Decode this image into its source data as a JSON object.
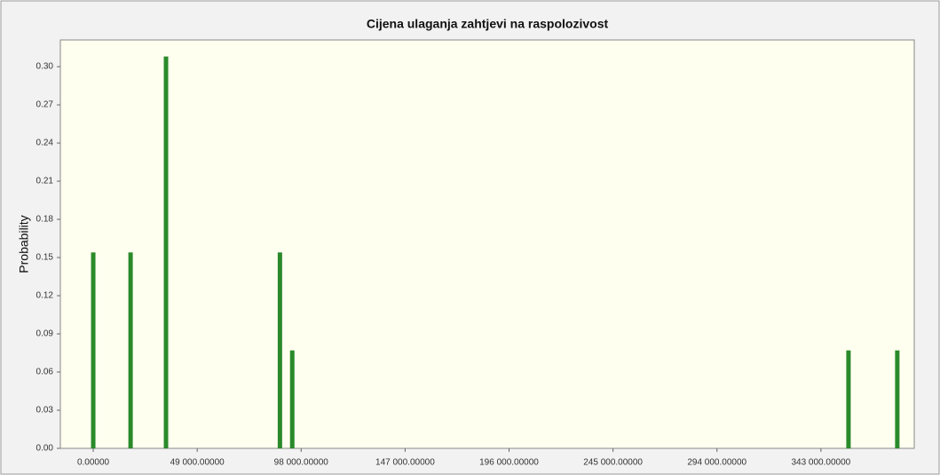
{
  "chart_data": {
    "type": "bar",
    "title": "Cijena ulaganja zahtjevi na raspolozivost",
    "y_label": "Probability",
    "x": [
      0,
      17600,
      34300,
      88000,
      93800,
      356000,
      379000
    ],
    "values": [
      0.154,
      0.154,
      0.308,
      0.154,
      0.077,
      0.077,
      0.077
    ],
    "color": "#2a8a2a",
    "xlim": [
      -15500,
      387000
    ],
    "xticks": [
      {
        "value": 0,
        "label": "0.00000"
      },
      {
        "value": 49000,
        "label": "49 000.00000"
      },
      {
        "value": 98000,
        "label": "98 000.00000"
      },
      {
        "value": 147000,
        "label": "147 000.00000"
      },
      {
        "value": 196000,
        "label": "196 000.00000"
      },
      {
        "value": 245000,
        "label": "245 000.00000"
      },
      {
        "value": 294000,
        "label": "294 000.00000"
      },
      {
        "value": 343000,
        "label": "343 000.00000"
      }
    ],
    "ylim": [
      0,
      0.321
    ],
    "yticks": [
      {
        "value": 0,
        "label": "0.00"
      },
      0.03,
      0.06,
      0.09,
      0.12,
      0.15,
      0.18,
      0.21,
      0.24,
      0.27,
      {
        "value": 0.3,
        "label": "0.30"
      }
    ]
  }
}
